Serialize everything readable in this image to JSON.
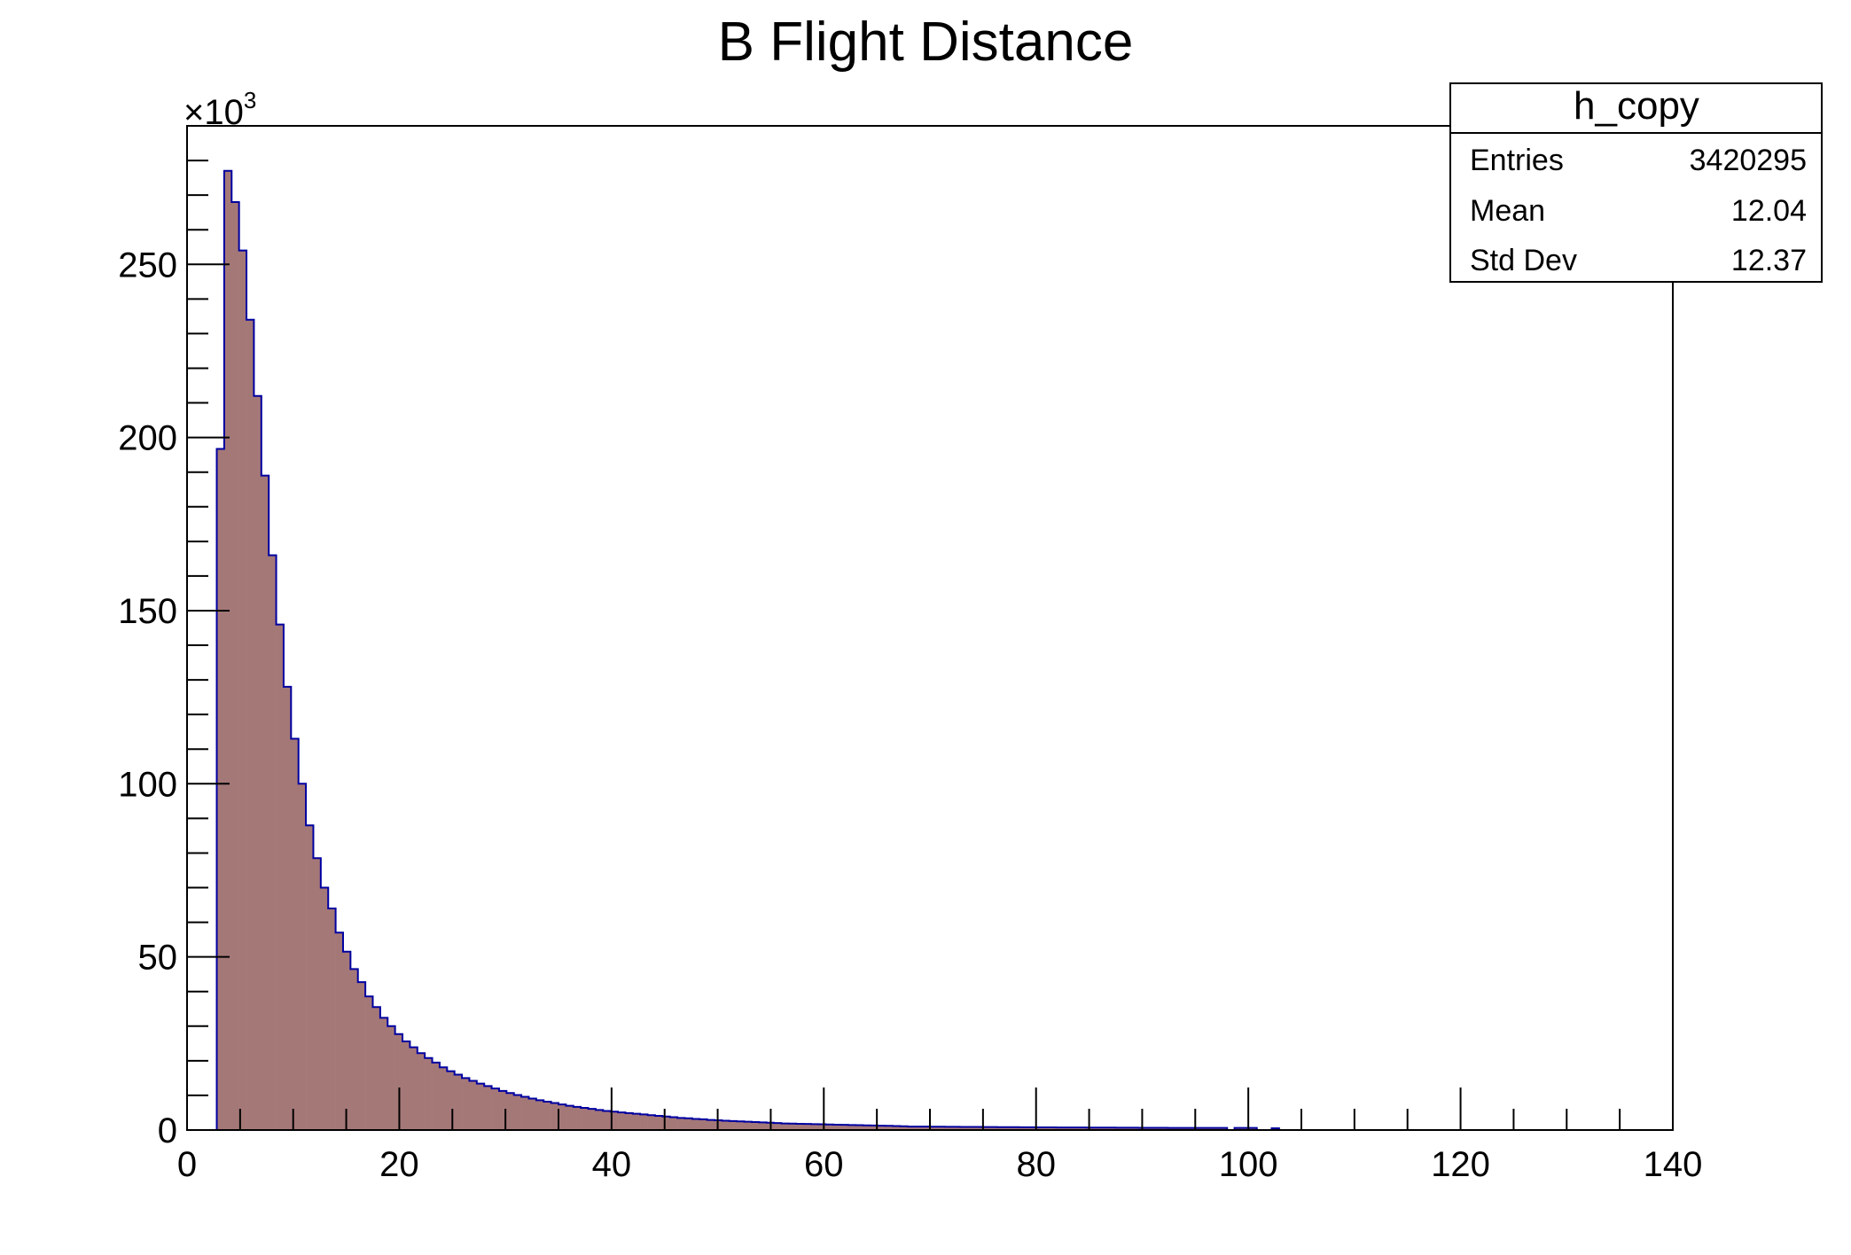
{
  "chart_data": {
    "type": "bar",
    "subtype": "histogram",
    "title": "B Flight Distance",
    "xlabel": "",
    "ylabel": "",
    "y_multiplier_label": "×10",
    "y_multiplier_exponent": "3",
    "xlim": [
      0,
      140
    ],
    "ylim": [
      0,
      290
    ],
    "x_ticks": [
      "0",
      "20",
      "40",
      "60",
      "80",
      "100",
      "120",
      "140"
    ],
    "y_ticks": [
      "0",
      "50",
      "100",
      "150",
      "200",
      "250"
    ],
    "grid": false,
    "fill_color": "#a57878",
    "line_color": "#0000a0",
    "bin_start": 2.8,
    "bin_width": 0.7,
    "values": [
      196.7,
      277,
      268,
      254,
      234,
      212,
      189,
      166,
      146,
      128,
      113,
      100,
      88,
      78.5,
      70,
      64,
      57,
      51.5,
      46.5,
      42.7,
      38.6,
      35.5,
      32.4,
      30,
      27.7,
      25.6,
      23.9,
      22.2,
      20.8,
      19.5,
      18.1,
      17,
      16,
      15,
      14.2,
      13.4,
      12.7,
      12,
      11.3,
      10.7,
      10.1,
      9.6,
      9.1,
      8.6,
      8.2,
      7.8,
      7.4,
      7.0,
      6.7,
      6.4,
      6.1,
      5.8,
      5.5,
      5.3,
      5.1,
      4.9,
      4.7,
      4.5,
      4.3,
      4.1,
      3.9,
      3.7,
      3.5,
      3.4,
      3.2,
      3.1,
      2.9,
      2.8,
      2.7,
      2.6,
      2.5,
      2.4,
      2.3,
      2.2,
      2.1,
      2.0,
      1.9,
      1.85,
      1.8,
      1.75,
      1.7,
      1.65,
      1.6,
      1.55,
      1.5,
      1.45,
      1.4,
      1.35,
      1.3,
      1.25,
      1.2,
      1.15,
      1.1,
      1.0,
      1.0,
      0.98,
      0.96,
      0.95,
      0.93,
      0.92,
      0.9,
      0.9,
      0.88,
      0.87,
      0.85,
      0.84,
      0.83,
      0.82,
      0.8,
      0.8,
      0.78,
      0.77,
      0.76,
      0.75,
      0.74,
      0.73,
      0.72,
      0.71,
      0.7,
      0.7,
      0.69,
      0.68,
      0.67,
      0.66,
      0.65,
      0.65,
      0.64,
      0.63,
      0.62,
      0.62,
      0.61,
      0.6,
      0.6,
      0.6,
      0.6,
      0.6,
      0,
      0.6,
      0.6,
      0.6,
      0,
      0,
      0.5
    ],
    "stats_box": {
      "name": "h_copy",
      "rows": [
        {
          "label": "Entries",
          "value": "3420295"
        },
        {
          "label": "Mean",
          "value": "12.04"
        },
        {
          "label": "Std Dev",
          "value": "12.37"
        }
      ]
    }
  }
}
